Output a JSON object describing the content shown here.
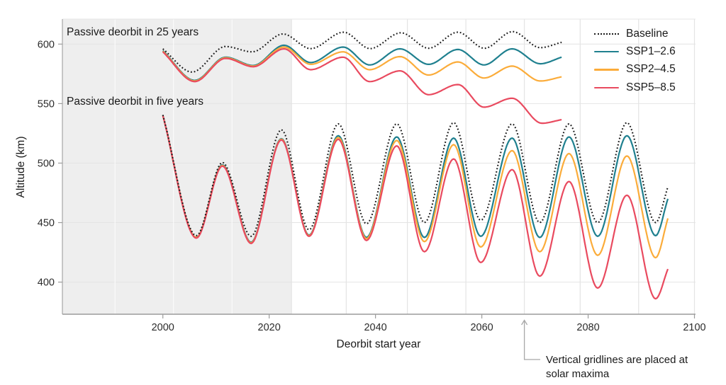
{
  "figure": {
    "background": "#ffffff",
    "xlabel": "Deorbit start year",
    "ylabel": "Altitude (km)",
    "annotation_25yr": "Passive deorbit in 25 years",
    "annotation_5yr": "Passive deorbit in five years",
    "gridline_note": "Vertical gridlines are placed at\nsolar maxima"
  },
  "legend": {
    "position": "top-right",
    "items": [
      {
        "label": "Baseline",
        "color": "#1a1a1a",
        "dashed": true
      },
      {
        "label": "SSP1–2.6",
        "color": "#1f808f",
        "dashed": false
      },
      {
        "label": "SSP2–4.5",
        "color": "#fbac3a",
        "dashed": false
      },
      {
        "label": "SSP5–8.5",
        "color": "#e94a5f",
        "dashed": false
      }
    ]
  },
  "chart_data": {
    "type": "line",
    "title": "",
    "xlabel": "Deorbit start year",
    "ylabel": "Altitude (km)",
    "xlim": [
      1981.1,
      2100.2
    ],
    "ylim": [
      373,
      621
    ],
    "x_ticks": [
      2000,
      2020,
      2040,
      2060,
      2080,
      2100
    ],
    "y_ticks": [
      400,
      450,
      500,
      550,
      600
    ],
    "grid": "on",
    "grid_vertical_years_solar_maxima": [
      1991,
      2002,
      2013,
      2024.2,
      2034.5,
      2046,
      2057,
      2068,
      2078.5,
      2089.5,
      2100
    ],
    "shaded_historical_region": {
      "from_year": 1981.1,
      "to_year": 2024.2,
      "color": "#eeeeee"
    },
    "annotation_arrow_target_year": 2068,
    "colors": {
      "baseline": "#1a1a1a",
      "ssp1": "#1f808f",
      "ssp2": "#fbac3a",
      "ssp5": "#e94a5f"
    },
    "series": [
      {
        "name": "SSP1–2.6",
        "group": "deorbit-25yr",
        "color": "#1f808f",
        "dashed": false,
        "points": [
          [
            2000,
            594.5
          ],
          [
            2006,
            569.5
          ],
          [
            2011.8,
            589
          ],
          [
            2017,
            582
          ],
          [
            2022.8,
            599
          ],
          [
            2027.8,
            584.5
          ],
          [
            2033.9,
            597.5
          ],
          [
            2038.9,
            582.5
          ],
          [
            2044.6,
            596
          ],
          [
            2050,
            583
          ],
          [
            2055.5,
            595.5
          ],
          [
            2060.4,
            582.5
          ],
          [
            2065.7,
            596
          ],
          [
            2071,
            583.5
          ],
          [
            2075,
            589
          ]
        ]
      },
      {
        "name": "SSP2–4.5",
        "group": "deorbit-25yr",
        "color": "#fbac3a",
        "dashed": false,
        "points": [
          [
            2000,
            594
          ],
          [
            2006,
            569
          ],
          [
            2011.8,
            588.5
          ],
          [
            2017,
            581.5
          ],
          [
            2022.8,
            597.5
          ],
          [
            2027.8,
            583
          ],
          [
            2033.9,
            593.5
          ],
          [
            2038.9,
            578.5
          ],
          [
            2044.6,
            589.5
          ],
          [
            2050,
            574
          ],
          [
            2055.5,
            585
          ],
          [
            2060.4,
            571.5
          ],
          [
            2065.7,
            581.5
          ],
          [
            2071,
            569
          ],
          [
            2075,
            572.5
          ]
        ]
      },
      {
        "name": "SSP5–8.5",
        "group": "deorbit-25yr",
        "color": "#e94a5f",
        "dashed": false,
        "points": [
          [
            2000,
            593.5
          ],
          [
            2006,
            568.5
          ],
          [
            2011.8,
            588
          ],
          [
            2017,
            581
          ],
          [
            2022.8,
            596
          ],
          [
            2027.8,
            578.5
          ],
          [
            2033.9,
            589
          ],
          [
            2038.9,
            568.5
          ],
          [
            2044.6,
            577.5
          ],
          [
            2050,
            557.5
          ],
          [
            2055.5,
            566
          ],
          [
            2060.4,
            547
          ],
          [
            2065.7,
            554.5
          ],
          [
            2071.3,
            533.5
          ],
          [
            2075,
            536.5
          ]
        ]
      },
      {
        "name": "Baseline",
        "group": "deorbit-25yr",
        "color": "#1a1a1a",
        "dashed": true,
        "points": [
          [
            2000,
            596
          ],
          [
            2005.5,
            576.5
          ],
          [
            2011.8,
            598
          ],
          [
            2016.8,
            593.5
          ],
          [
            2022.6,
            608.5
          ],
          [
            2027.8,
            596.2
          ],
          [
            2034,
            610
          ],
          [
            2039,
            596.2
          ],
          [
            2044.8,
            609.5
          ],
          [
            2050,
            596.5
          ],
          [
            2055.5,
            610
          ],
          [
            2060.5,
            596.5
          ],
          [
            2065.8,
            610.5
          ],
          [
            2071,
            597
          ],
          [
            2075,
            601.5
          ]
        ]
      },
      {
        "name": "SSP1–2.6",
        "group": "deorbit-5yr",
        "color": "#1f808f",
        "dashed": false,
        "points": [
          [
            2000,
            540
          ],
          [
            2006.3,
            437.5
          ],
          [
            2011.2,
            498.5
          ],
          [
            2016.6,
            433.5
          ],
          [
            2022.3,
            520.5
          ],
          [
            2027.5,
            439.5
          ],
          [
            2033,
            523
          ],
          [
            2038.3,
            437.5
          ],
          [
            2044,
            522
          ],
          [
            2049.2,
            437.5
          ],
          [
            2054.7,
            521
          ],
          [
            2059.8,
            438.5
          ],
          [
            2065.7,
            521
          ],
          [
            2070.9,
            437.5
          ],
          [
            2076.4,
            522
          ],
          [
            2081.8,
            438.5
          ],
          [
            2087.3,
            523
          ],
          [
            2092.7,
            439
          ],
          [
            2095,
            470
          ]
        ]
      },
      {
        "name": "SSP2–4.5",
        "group": "deorbit-5yr",
        "color": "#fbac3a",
        "dashed": false,
        "points": [
          [
            2000,
            540
          ],
          [
            2006.3,
            437.5
          ],
          [
            2011.2,
            498
          ],
          [
            2016.6,
            433
          ],
          [
            2022.3,
            520
          ],
          [
            2027.5,
            439
          ],
          [
            2033,
            521.5
          ],
          [
            2038.3,
            436.5
          ],
          [
            2044,
            519
          ],
          [
            2049.2,
            434
          ],
          [
            2054.7,
            515.5
          ],
          [
            2059.8,
            429.5
          ],
          [
            2065.7,
            510.5
          ],
          [
            2070.9,
            425.5
          ],
          [
            2076.4,
            508
          ],
          [
            2081.8,
            422.5
          ],
          [
            2087.3,
            506
          ],
          [
            2092.7,
            420.5
          ],
          [
            2095,
            453.5
          ]
        ]
      },
      {
        "name": "SSP5–8.5",
        "group": "deorbit-5yr",
        "color": "#e94a5f",
        "dashed": false,
        "points": [
          [
            2000,
            540
          ],
          [
            2006.3,
            437
          ],
          [
            2011.2,
            497.5
          ],
          [
            2016.6,
            432.5
          ],
          [
            2022.3,
            519.5
          ],
          [
            2027.5,
            438.5
          ],
          [
            2033,
            520
          ],
          [
            2038.3,
            435
          ],
          [
            2044,
            514.5
          ],
          [
            2049.2,
            425.5
          ],
          [
            2054.7,
            503.5
          ],
          [
            2059.8,
            416.5
          ],
          [
            2065.7,
            494.5
          ],
          [
            2070.9,
            405
          ],
          [
            2076.4,
            484.5
          ],
          [
            2081.8,
            395
          ],
          [
            2087.3,
            473
          ],
          [
            2092.7,
            386
          ],
          [
            2095,
            411
          ]
        ]
      },
      {
        "name": "Baseline",
        "group": "deorbit-5yr",
        "color": "#1a1a1a",
        "dashed": true,
        "points": [
          [
            2000,
            540.5
          ],
          [
            2006.3,
            439
          ],
          [
            2011.2,
            500.5
          ],
          [
            2016.6,
            438.5
          ],
          [
            2022.3,
            528
          ],
          [
            2027.5,
            444
          ],
          [
            2033,
            533
          ],
          [
            2038.3,
            449
          ],
          [
            2044,
            533
          ],
          [
            2049.2,
            450
          ],
          [
            2054.7,
            534
          ],
          [
            2059.8,
            452
          ],
          [
            2065.7,
            533
          ],
          [
            2070.9,
            450
          ],
          [
            2076.4,
            533
          ],
          [
            2081.8,
            450
          ],
          [
            2087.3,
            534
          ],
          [
            2092.7,
            450
          ],
          [
            2095,
            480
          ]
        ]
      }
    ]
  }
}
